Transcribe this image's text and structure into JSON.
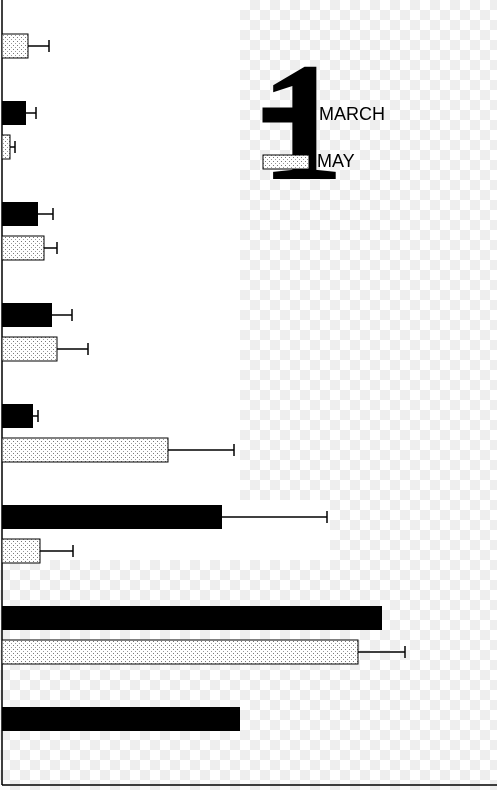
{
  "chart_data": {
    "type": "hbar",
    "annotation": "1",
    "categories": [
      null,
      null,
      null,
      null,
      null,
      null,
      null,
      null
    ],
    "series": [
      {
        "name": "MARCH",
        "color": "#000000",
        "values": [
          null,
          24,
          36,
          50,
          31,
          220,
          380,
          238
        ],
        "errors": [
          null,
          10,
          15,
          20,
          5,
          105,
          null,
          null
        ]
      },
      {
        "name": "MAY",
        "color": "#e6e6e6",
        "values": [
          26,
          8,
          42,
          55,
          166,
          38,
          356,
          null
        ],
        "errors": [
          21,
          5,
          13,
          31,
          66,
          33,
          47,
          null
        ]
      }
    ],
    "xlim": [
      0,
      495
    ]
  }
}
